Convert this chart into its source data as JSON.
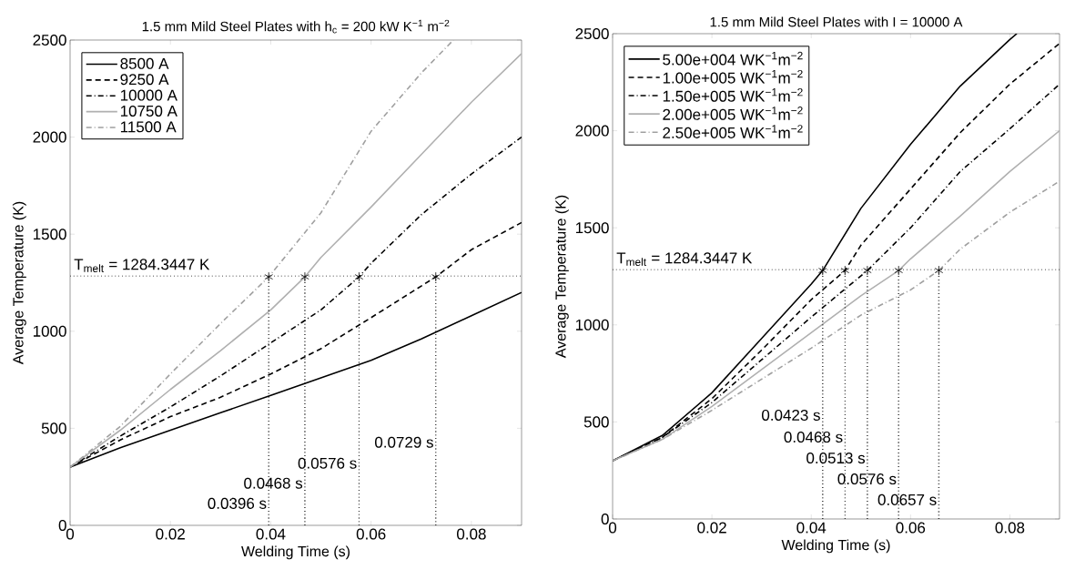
{
  "chart_data": [
    {
      "type": "line",
      "title": "1.5 mm Mild Steel Plates with h$_{c}$ = 200 kW K$^{−1}$ m$^{−2}$",
      "xlabel": "Welding Time (s)",
      "ylabel": "Average Temperature (K)",
      "xlim": [
        0,
        0.09
      ],
      "ylim": [
        0,
        2500
      ],
      "xticks": [
        0,
        0.02,
        0.04,
        0.06,
        0.08
      ],
      "yticks": [
        0,
        500,
        1000,
        1500,
        2000,
        2500
      ],
      "legend": "top left",
      "series": [
        {
          "name": "8500 A",
          "color": "#000000",
          "line_style": "solid",
          "x": [
            0,
            0.01,
            0.02,
            0.03,
            0.04,
            0.05,
            0.06,
            0.07,
            0.08,
            0.09
          ],
          "values": [
            300,
            400,
            490,
            580,
            670,
            760,
            850,
            960,
            1080,
            1200
          ]
        },
        {
          "name": "9250 A",
          "color": "#000000",
          "line_style": "dashed",
          "x": [
            0,
            0.01,
            0.02,
            0.03,
            0.04,
            0.05,
            0.06,
            0.0729,
            0.08,
            0.09
          ],
          "values": [
            300,
            440,
            560,
            660,
            780,
            910,
            1070,
            1280,
            1420,
            1560
          ]
        },
        {
          "name": "10000 A",
          "color": "#000000",
          "line_style": "dashdot",
          "x": [
            0,
            0.01,
            0.02,
            0.03,
            0.04,
            0.05,
            0.0576,
            0.06,
            0.07,
            0.08,
            0.09
          ],
          "values": [
            300,
            460,
            610,
            770,
            940,
            1110,
            1280,
            1350,
            1600,
            1810,
            2000
          ]
        },
        {
          "name": "10750 A",
          "color": "#b0b0b0",
          "line_style": "solid",
          "x": [
            0,
            0.01,
            0.02,
            0.03,
            0.04,
            0.0468,
            0.05,
            0.06,
            0.07,
            0.08,
            0.09
          ],
          "values": [
            300,
            490,
            700,
            900,
            1110,
            1280,
            1380,
            1640,
            1910,
            2180,
            2430
          ]
        },
        {
          "name": "11500 A",
          "color": "#a0a0a0",
          "line_style": "dashdot",
          "x": [
            0,
            0.01,
            0.02,
            0.03,
            0.0396,
            0.05,
            0.06,
            0.07,
            0.0764
          ],
          "values": [
            300,
            510,
            780,
            1040,
            1280,
            1610,
            2030,
            2330,
            2500
          ]
        },
        {
          "type": "line",
          "color": "#000000",
          "line_style": "dotted",
          "x": [
            0.0396,
            0.0396
          ],
          "values": [
            0,
            1280
          ]
        },
        {
          "type": "line",
          "color": "#000000",
          "line_style": "dotted",
          "x": [
            0.0468,
            0.0468
          ],
          "values": [
            0,
            1280
          ]
        },
        {
          "type": "line",
          "color": "#000000",
          "line_style": "dotted",
          "x": [
            0.0576,
            0.0576
          ],
          "values": [
            0,
            1280
          ]
        },
        {
          "type": "line",
          "color": "#000000",
          "line_style": "dotted",
          "x": [
            0.0729,
            0.0729
          ],
          "values": [
            0,
            1280
          ]
        },
        {
          "type": "scatter",
          "color": "#000000",
          "marker": "cross",
          "x": [
            0.0396,
            0.0468,
            0.0576,
            0.0729
          ],
          "values": [
            1280,
            1280,
            1280,
            1280
          ]
        }
      ],
      "ref_lines": [
        {
          "axis": "y",
          "value": 1284.3447,
          "label": "T$_{melt}$ = 1284.3447 K",
          "line_style": "dotted",
          "color": "#000000"
        }
      ],
      "annotations": [
        {
          "text": "0.0396 s",
          "x": 0.0396,
          "y": 113
        },
        {
          "text": "0.0468 s",
          "x": 0.0468,
          "y": 217
        },
        {
          "text": "0.0576 s",
          "x": 0.0576,
          "y": 320
        },
        {
          "text": "0.0729 s",
          "x": 0.0729,
          "y": 428
        }
      ]
    },
    {
      "type": "line",
      "title": "1.5 mm Mild Steel Plates with I = 10000 A",
      "xlabel": "Welding Time (s)",
      "ylabel": "Average Temperature (K)",
      "xlim": [
        0,
        0.09
      ],
      "ylim": [
        0,
        2500
      ],
      "xticks": [
        0,
        0.02,
        0.04,
        0.06,
        0.08
      ],
      "yticks": [
        0,
        500,
        1000,
        1500,
        2000,
        2500
      ],
      "legend": "top left",
      "series": [
        {
          "name": "5.00e+004 WK$^{−1}$m$^{−2}$",
          "color": "#000000",
          "line_style": "solid",
          "x": [
            0,
            0.01,
            0.02,
            0.03,
            0.04,
            0.0423,
            0.05,
            0.06,
            0.07,
            0.08,
            0.0814
          ],
          "values": [
            300,
            430,
            650,
            930,
            1210,
            1280,
            1600,
            1930,
            2230,
            2470,
            2500
          ]
        },
        {
          "name": "1.00e+005 WK$^{−1}$m$^{−2}$",
          "color": "#000000",
          "line_style": "dashed",
          "x": [
            0,
            0.01,
            0.02,
            0.03,
            0.04,
            0.0468,
            0.05,
            0.06,
            0.07,
            0.08,
            0.09
          ],
          "values": [
            300,
            420,
            620,
            870,
            1130,
            1280,
            1410,
            1700,
            1990,
            2240,
            2450
          ]
        },
        {
          "name": "1.50e+005 WK$^{−1}$m$^{−2}$",
          "color": "#000000",
          "line_style": "dashdot",
          "x": [
            0,
            0.01,
            0.02,
            0.03,
            0.04,
            0.0513,
            0.06,
            0.07,
            0.08,
            0.09
          ],
          "values": [
            300,
            420,
            600,
            820,
            1040,
            1280,
            1500,
            1790,
            2010,
            2240
          ]
        },
        {
          "name": "2.00e+005 WK$^{−1}$m$^{−2}$",
          "color": "#b0b0b0",
          "line_style": "solid",
          "x": [
            0,
            0.01,
            0.02,
            0.03,
            0.04,
            0.05,
            0.0576,
            0.06,
            0.07,
            0.08,
            0.09
          ],
          "values": [
            300,
            410,
            580,
            770,
            960,
            1150,
            1280,
            1340,
            1560,
            1790,
            2000
          ]
        },
        {
          "name": "2.50e+005 WK$^{−1}$m$^{−2}$",
          "color": "#a0a0a0",
          "line_style": "dashdot",
          "x": [
            0,
            0.01,
            0.02,
            0.03,
            0.04,
            0.05,
            0.06,
            0.0657,
            0.07,
            0.08,
            0.09
          ],
          "values": [
            300,
            410,
            560,
            720,
            880,
            1050,
            1180,
            1280,
            1390,
            1580,
            1740
          ]
        },
        {
          "type": "line",
          "color": "#000000",
          "line_style": "dotted",
          "x": [
            0.0423,
            0.0423
          ],
          "values": [
            0,
            1280
          ]
        },
        {
          "type": "line",
          "color": "#000000",
          "line_style": "dotted",
          "x": [
            0.0468,
            0.0468
          ],
          "values": [
            0,
            1280
          ]
        },
        {
          "type": "line",
          "color": "#000000",
          "line_style": "dotted",
          "x": [
            0.0513,
            0.0513
          ],
          "values": [
            0,
            1280
          ]
        },
        {
          "type": "line",
          "color": "#000000",
          "line_style": "dotted",
          "x": [
            0.0576,
            0.0576
          ],
          "values": [
            0,
            1280
          ]
        },
        {
          "type": "line",
          "color": "#000000",
          "line_style": "dotted",
          "x": [
            0.0657,
            0.0657
          ],
          "values": [
            0,
            1280
          ]
        },
        {
          "type": "scatter",
          "color": "#000000",
          "marker": "cross",
          "x": [
            0.0423,
            0.0468,
            0.0513,
            0.0576,
            0.0657
          ],
          "values": [
            1280,
            1280,
            1280,
            1280,
            1280
          ]
        }
      ],
      "ref_lines": [
        {
          "axis": "y",
          "value": 1284.3447,
          "label": "T$_{melt}$ = 1284.3447 K",
          "line_style": "dotted",
          "color": "#000000"
        }
      ],
      "annotations": [
        {
          "text": "0.0423 s",
          "x": 0.0423,
          "y": 535
        },
        {
          "text": "0.0468 s",
          "x": 0.0468,
          "y": 422
        },
        {
          "text": "0.0513 s",
          "x": 0.0513,
          "y": 314
        },
        {
          "text": "0.0576 s",
          "x": 0.0576,
          "y": 206
        },
        {
          "text": "0.0657 s",
          "x": 0.0657,
          "y": 99
        }
      ]
    }
  ]
}
